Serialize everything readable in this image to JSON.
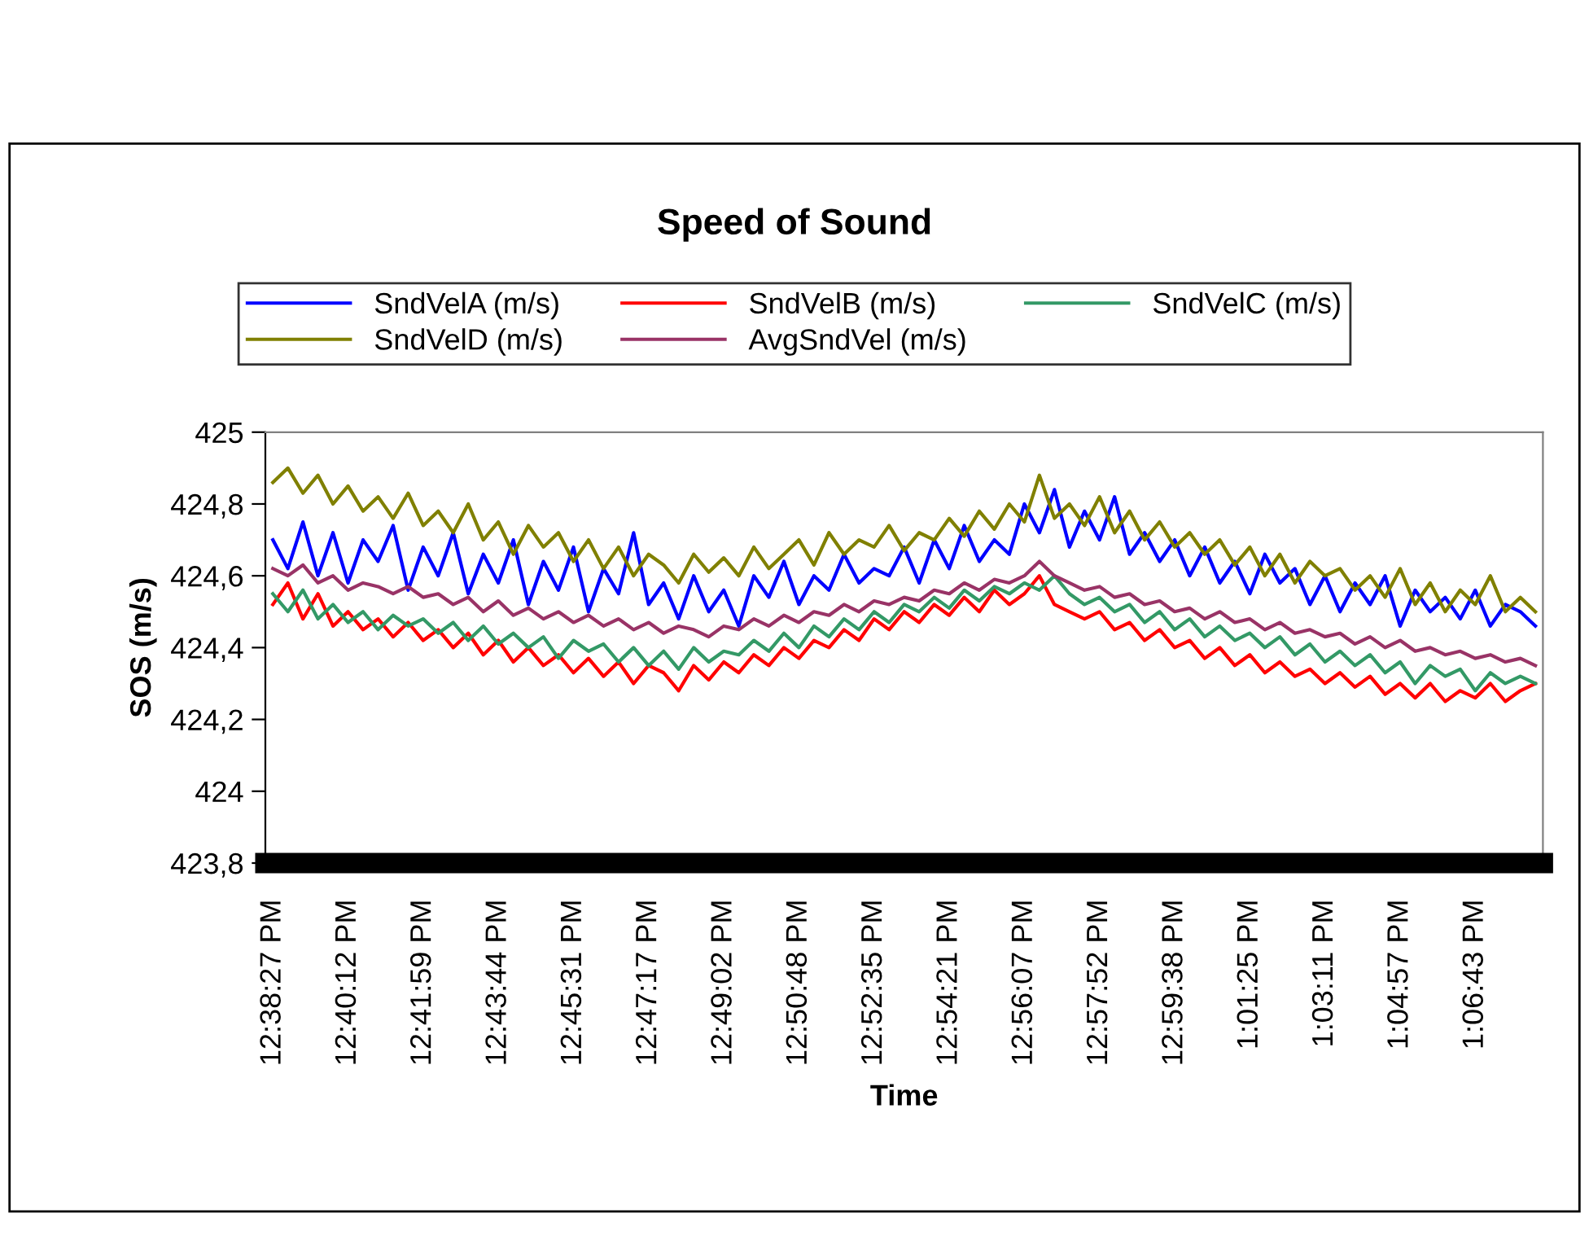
{
  "chart_data": {
    "type": "line",
    "title": "Speed of Sound",
    "xlabel": "Time",
    "ylabel": "SOS (m/s)",
    "categories": [
      "12:38:27 PM",
      null,
      null,
      null,
      null,
      "12:40:12 PM",
      null,
      null,
      null,
      null,
      "12:41:59 PM",
      null,
      null,
      null,
      null,
      "12:43:44 PM",
      null,
      null,
      null,
      null,
      "12:45:31 PM",
      null,
      null,
      null,
      null,
      "12:47:17 PM",
      null,
      null,
      null,
      null,
      "12:49:02 PM",
      null,
      null,
      null,
      null,
      "12:50:48 PM",
      null,
      null,
      null,
      null,
      "12:52:35 PM",
      null,
      null,
      null,
      null,
      "12:54:21 PM",
      null,
      null,
      null,
      null,
      "12:56:07 PM",
      null,
      null,
      null,
      null,
      "12:57:52 PM",
      null,
      null,
      null,
      null,
      "12:59:38 PM",
      null,
      null,
      null,
      null,
      "1:01:25 PM",
      null,
      null,
      null,
      null,
      "1:03:11 PM",
      null,
      null,
      null,
      null,
      "1:04:57 PM",
      null,
      null,
      null,
      null,
      "1:06:43 PM",
      null,
      null,
      null,
      null
    ],
    "ylim": [
      423.8,
      425
    ],
    "yticks": [
      {
        "value": 423.8,
        "label": "423,8"
      },
      424,
      {
        "value": 424.2,
        "label": "424,2"
      },
      {
        "value": 424.4,
        "label": "424,4"
      },
      {
        "value": 424.6,
        "label": "424,6"
      },
      {
        "value": 424.8,
        "label": "424,8"
      },
      425
    ],
    "grid": false,
    "legend": "top",
    "marker": "none",
    "line_style": "solid",
    "series": [
      {
        "name": "SndVelA (m/s)",
        "color": "#0000ff",
        "values": [
          424.7,
          424.62,
          424.75,
          424.6,
          424.72,
          424.58,
          424.7,
          424.64,
          424.74,
          424.56,
          424.68,
          424.6,
          424.72,
          424.55,
          424.66,
          424.58,
          424.7,
          424.52,
          424.64,
          424.56,
          424.68,
          424.5,
          424.62,
          424.55,
          424.72,
          424.52,
          424.58,
          424.48,
          424.6,
          424.5,
          424.56,
          424.46,
          424.6,
          424.54,
          424.64,
          424.52,
          424.6,
          424.56,
          424.66,
          424.58,
          424.62,
          424.6,
          424.68,
          424.58,
          424.7,
          424.62,
          424.74,
          424.64,
          424.7,
          424.66,
          424.8,
          424.72,
          424.84,
          424.68,
          424.78,
          424.7,
          424.82,
          424.66,
          424.72,
          424.64,
          424.7,
          424.6,
          424.68,
          424.58,
          424.64,
          424.55,
          424.66,
          424.58,
          424.62,
          424.52,
          424.6,
          424.5,
          424.58,
          424.52,
          424.6,
          424.46,
          424.56,
          424.5,
          424.54,
          424.48,
          424.56,
          424.46,
          424.52,
          424.5,
          424.46
        ]
      },
      {
        "name": "SndVelB (m/s)",
        "color": "#ff0000",
        "values": [
          424.52,
          424.58,
          424.48,
          424.55,
          424.46,
          424.5,
          424.45,
          424.48,
          424.43,
          424.47,
          424.42,
          424.45,
          424.4,
          424.44,
          424.38,
          424.42,
          424.36,
          424.4,
          424.35,
          424.38,
          424.33,
          424.37,
          424.32,
          424.36,
          424.3,
          424.35,
          424.33,
          424.28,
          424.35,
          424.31,
          424.36,
          424.33,
          424.38,
          424.35,
          424.4,
          424.37,
          424.42,
          424.4,
          424.45,
          424.42,
          424.48,
          424.45,
          424.5,
          424.47,
          424.52,
          424.49,
          424.54,
          424.5,
          424.56,
          424.52,
          424.55,
          424.6,
          424.52,
          424.5,
          424.48,
          424.5,
          424.45,
          424.47,
          424.42,
          424.45,
          424.4,
          424.42,
          424.37,
          424.4,
          424.35,
          424.38,
          424.33,
          424.36,
          424.32,
          424.34,
          424.3,
          424.33,
          424.29,
          424.32,
          424.27,
          424.3,
          424.26,
          424.3,
          424.25,
          424.28,
          424.26,
          424.3,
          424.25,
          424.28,
          424.3
        ]
      },
      {
        "name": "SndVelC (m/s)",
        "color": "#339966",
        "values": [
          424.55,
          424.5,
          424.56,
          424.48,
          424.52,
          424.47,
          424.5,
          424.45,
          424.49,
          424.46,
          424.48,
          424.44,
          424.47,
          424.42,
          424.46,
          424.41,
          424.44,
          424.4,
          424.43,
          424.37,
          424.42,
          424.39,
          424.41,
          424.36,
          424.4,
          424.35,
          424.39,
          424.34,
          424.4,
          424.36,
          424.39,
          424.38,
          424.42,
          424.39,
          424.44,
          424.4,
          424.46,
          424.43,
          424.48,
          424.45,
          424.5,
          424.47,
          424.52,
          424.5,
          424.54,
          424.51,
          424.56,
          424.53,
          424.57,
          424.55,
          424.58,
          424.56,
          424.6,
          424.55,
          424.52,
          424.54,
          424.5,
          424.52,
          424.47,
          424.5,
          424.45,
          424.48,
          424.43,
          424.46,
          424.42,
          424.44,
          424.4,
          424.43,
          424.38,
          424.41,
          424.36,
          424.39,
          424.35,
          424.38,
          424.33,
          424.36,
          424.3,
          424.35,
          424.32,
          424.34,
          424.28,
          424.33,
          424.3,
          424.32,
          424.3
        ]
      },
      {
        "name": "SndVelD (m/s)",
        "color": "#808000",
        "values": [
          424.86,
          424.9,
          424.83,
          424.88,
          424.8,
          424.85,
          424.78,
          424.82,
          424.76,
          424.83,
          424.74,
          424.78,
          424.72,
          424.8,
          424.7,
          424.75,
          424.66,
          424.74,
          424.68,
          424.72,
          424.64,
          424.7,
          424.62,
          424.68,
          424.6,
          424.66,
          424.63,
          424.58,
          424.66,
          424.61,
          424.65,
          424.6,
          424.68,
          424.62,
          424.66,
          424.7,
          424.63,
          424.72,
          424.66,
          424.7,
          424.68,
          424.74,
          424.67,
          424.72,
          424.7,
          424.76,
          424.71,
          424.78,
          424.73,
          424.8,
          424.75,
          424.88,
          424.76,
          424.8,
          424.74,
          424.82,
          424.72,
          424.78,
          424.7,
          424.75,
          424.68,
          424.72,
          424.66,
          424.7,
          424.63,
          424.68,
          424.6,
          424.66,
          424.58,
          424.64,
          424.6,
          424.62,
          424.56,
          424.6,
          424.54,
          424.62,
          424.52,
          424.58,
          424.5,
          424.56,
          424.52,
          424.6,
          424.5,
          424.54,
          424.5
        ]
      },
      {
        "name": "AvgSndVel (m/s)",
        "color": "#993366",
        "values": [
          424.62,
          424.6,
          424.63,
          424.58,
          424.6,
          424.56,
          424.58,
          424.57,
          424.55,
          424.57,
          424.54,
          424.55,
          424.52,
          424.54,
          424.5,
          424.53,
          424.49,
          424.51,
          424.48,
          424.5,
          424.47,
          424.49,
          424.46,
          424.48,
          424.45,
          424.47,
          424.44,
          424.46,
          424.45,
          424.43,
          424.46,
          424.45,
          424.48,
          424.46,
          424.49,
          424.47,
          424.5,
          424.49,
          424.52,
          424.5,
          424.53,
          424.52,
          424.54,
          424.53,
          424.56,
          424.55,
          424.58,
          424.56,
          424.59,
          424.58,
          424.6,
          424.64,
          424.6,
          424.58,
          424.56,
          424.57,
          424.54,
          424.55,
          424.52,
          424.53,
          424.5,
          424.51,
          424.48,
          424.5,
          424.47,
          424.48,
          424.45,
          424.47,
          424.44,
          424.45,
          424.43,
          424.44,
          424.41,
          424.43,
          424.4,
          424.42,
          424.39,
          424.4,
          424.38,
          424.39,
          424.37,
          424.38,
          424.36,
          424.37,
          424.35
        ]
      }
    ]
  }
}
